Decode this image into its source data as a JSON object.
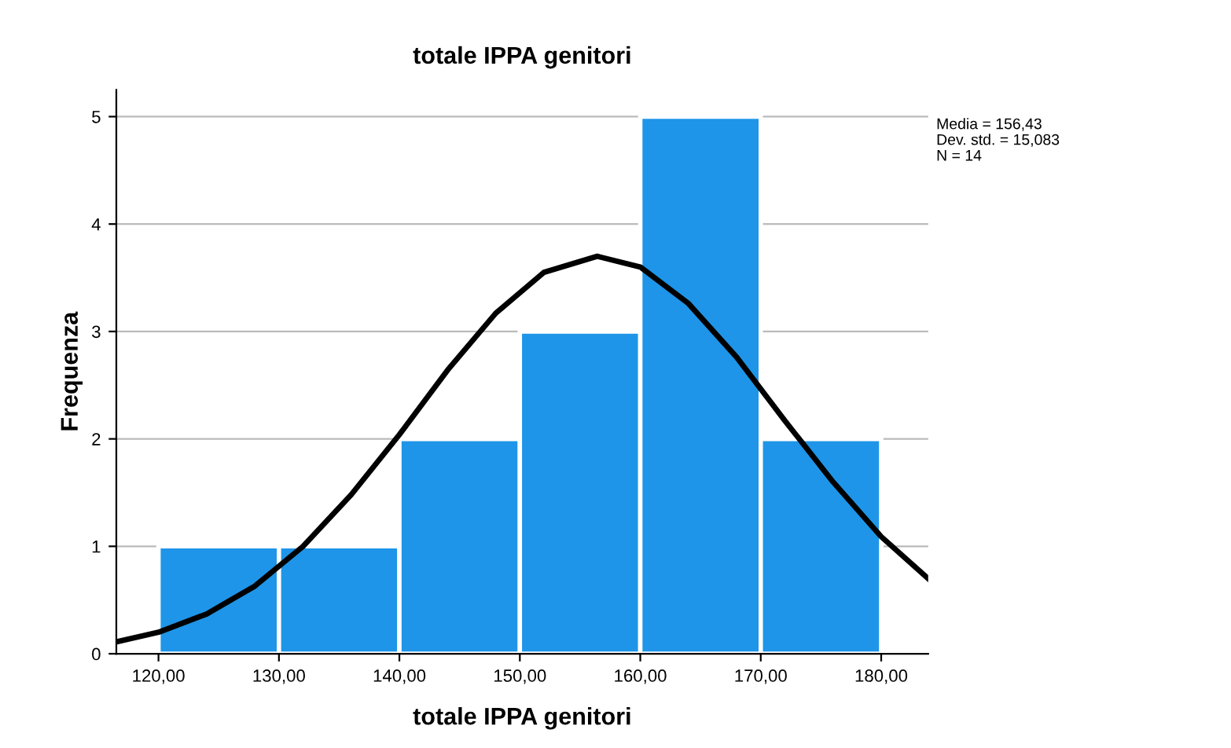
{
  "chart_data": {
    "type": "histogram",
    "title": "totale IPPA genitori",
    "xlabel": "totale IPPA genitori",
    "ylabel": "Frequenza",
    "bins": [
      120,
      130,
      140,
      150,
      160,
      170,
      180
    ],
    "values": [
      1,
      1,
      2,
      3,
      5,
      2
    ],
    "color": "#1e95e8",
    "series": [
      {
        "type": "line",
        "color": "#000000",
        "x": [
          116.5,
          120,
          124,
          128,
          132,
          136,
          140,
          144,
          148,
          152,
          156.43,
          160,
          164,
          168,
          172,
          176,
          180,
          183.9
        ],
        "values": [
          0.11,
          0.2,
          0.37,
          0.63,
          1.0,
          1.48,
          2.04,
          2.64,
          3.17,
          3.55,
          3.7,
          3.6,
          3.26,
          2.76,
          2.17,
          1.6,
          1.09,
          0.7
        ]
      }
    ],
    "xlim": [
      116.5,
      183.9
    ],
    "xticks": [
      {
        "value": 120,
        "label": "120,00"
      },
      {
        "value": 130,
        "label": "130,00"
      },
      {
        "value": 140,
        "label": "140,00"
      },
      {
        "value": 150,
        "label": "150,00"
      },
      {
        "value": 160,
        "label": "160,00"
      },
      {
        "value": 170,
        "label": "170,00"
      },
      {
        "value": 180,
        "label": "180,00"
      }
    ],
    "ylim": [
      0,
      5.25
    ],
    "yticks": [
      0,
      1,
      2,
      3,
      4,
      5
    ],
    "grid": "y",
    "annotations": [
      "Media = 156,43",
      "Dev. std. = 15,083",
      "N = 14"
    ]
  }
}
